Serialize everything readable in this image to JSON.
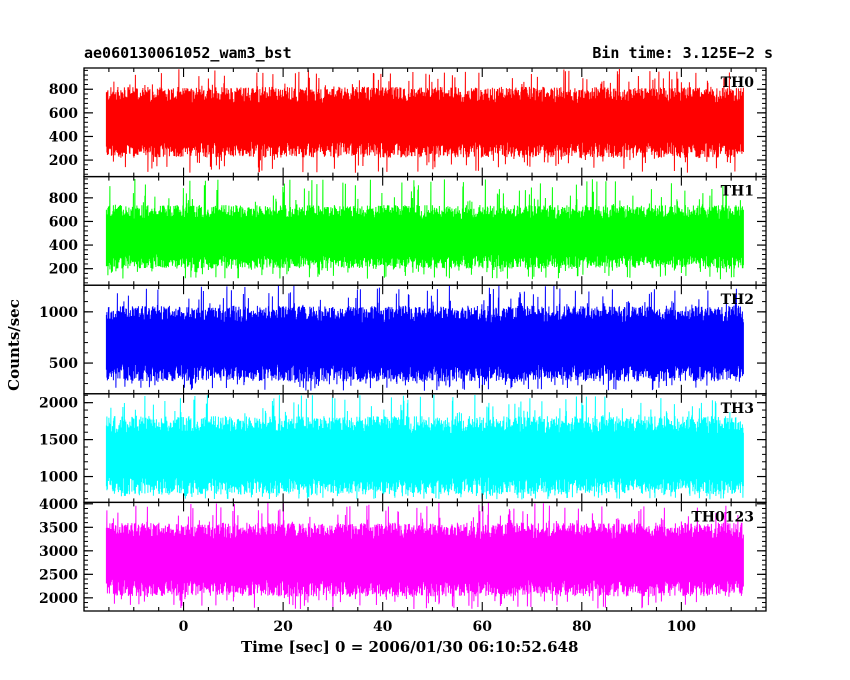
{
  "header": {
    "title": "ae060130061052_wam3_bst",
    "bin_time": "Bin time: 3.125E−2 s"
  },
  "chart_data": {
    "type": "line",
    "title": "ae060130061052_wam3_bst",
    "xlabel": "Time [sec] 0 = 2006/01/30 06:10:52.648",
    "ylabel": "Counts/sec",
    "xlim": [
      -20,
      117
    ],
    "x_ticks": [
      0,
      20,
      40,
      60,
      80,
      100
    ],
    "x_data_range": [
      -15.5,
      112.5
    ],
    "grid": false,
    "panels": [
      {
        "name": "TH0",
        "color": "#ff0000",
        "ylim": [
          60,
          980
        ],
        "y_ticks": [
          200,
          400,
          600,
          800
        ],
        "typical_low": 220,
        "typical_high": 820,
        "min": 90,
        "max": 975
      },
      {
        "name": "TH1",
        "color": "#00ff00",
        "ylim": [
          60,
          980
        ],
        "y_ticks": [
          200,
          400,
          600,
          800
        ],
        "typical_low": 200,
        "typical_high": 740,
        "min": 110,
        "max": 960
      },
      {
        "name": "TH2",
        "color": "#0000ff",
        "ylim": [
          200,
          1260
        ],
        "y_ticks": [
          500,
          1000
        ],
        "typical_low": 320,
        "typical_high": 1060,
        "min": 230,
        "max": 1255
      },
      {
        "name": "TH3",
        "color": "#00ffff",
        "ylim": [
          650,
          2120
        ],
        "y_ticks": [
          1000,
          1500,
          2000
        ],
        "typical_low": 760,
        "typical_high": 1820,
        "min": 690,
        "max": 2110
      },
      {
        "name": "TH0123",
        "color": "#ff00ff",
        "ylim": [
          1720,
          4030
        ],
        "y_ticks": [
          2000,
          2500,
          3000,
          3500,
          4000
        ],
        "typical_low": 2030,
        "typical_high": 3600,
        "min": 1760,
        "max": 4020
      }
    ]
  }
}
